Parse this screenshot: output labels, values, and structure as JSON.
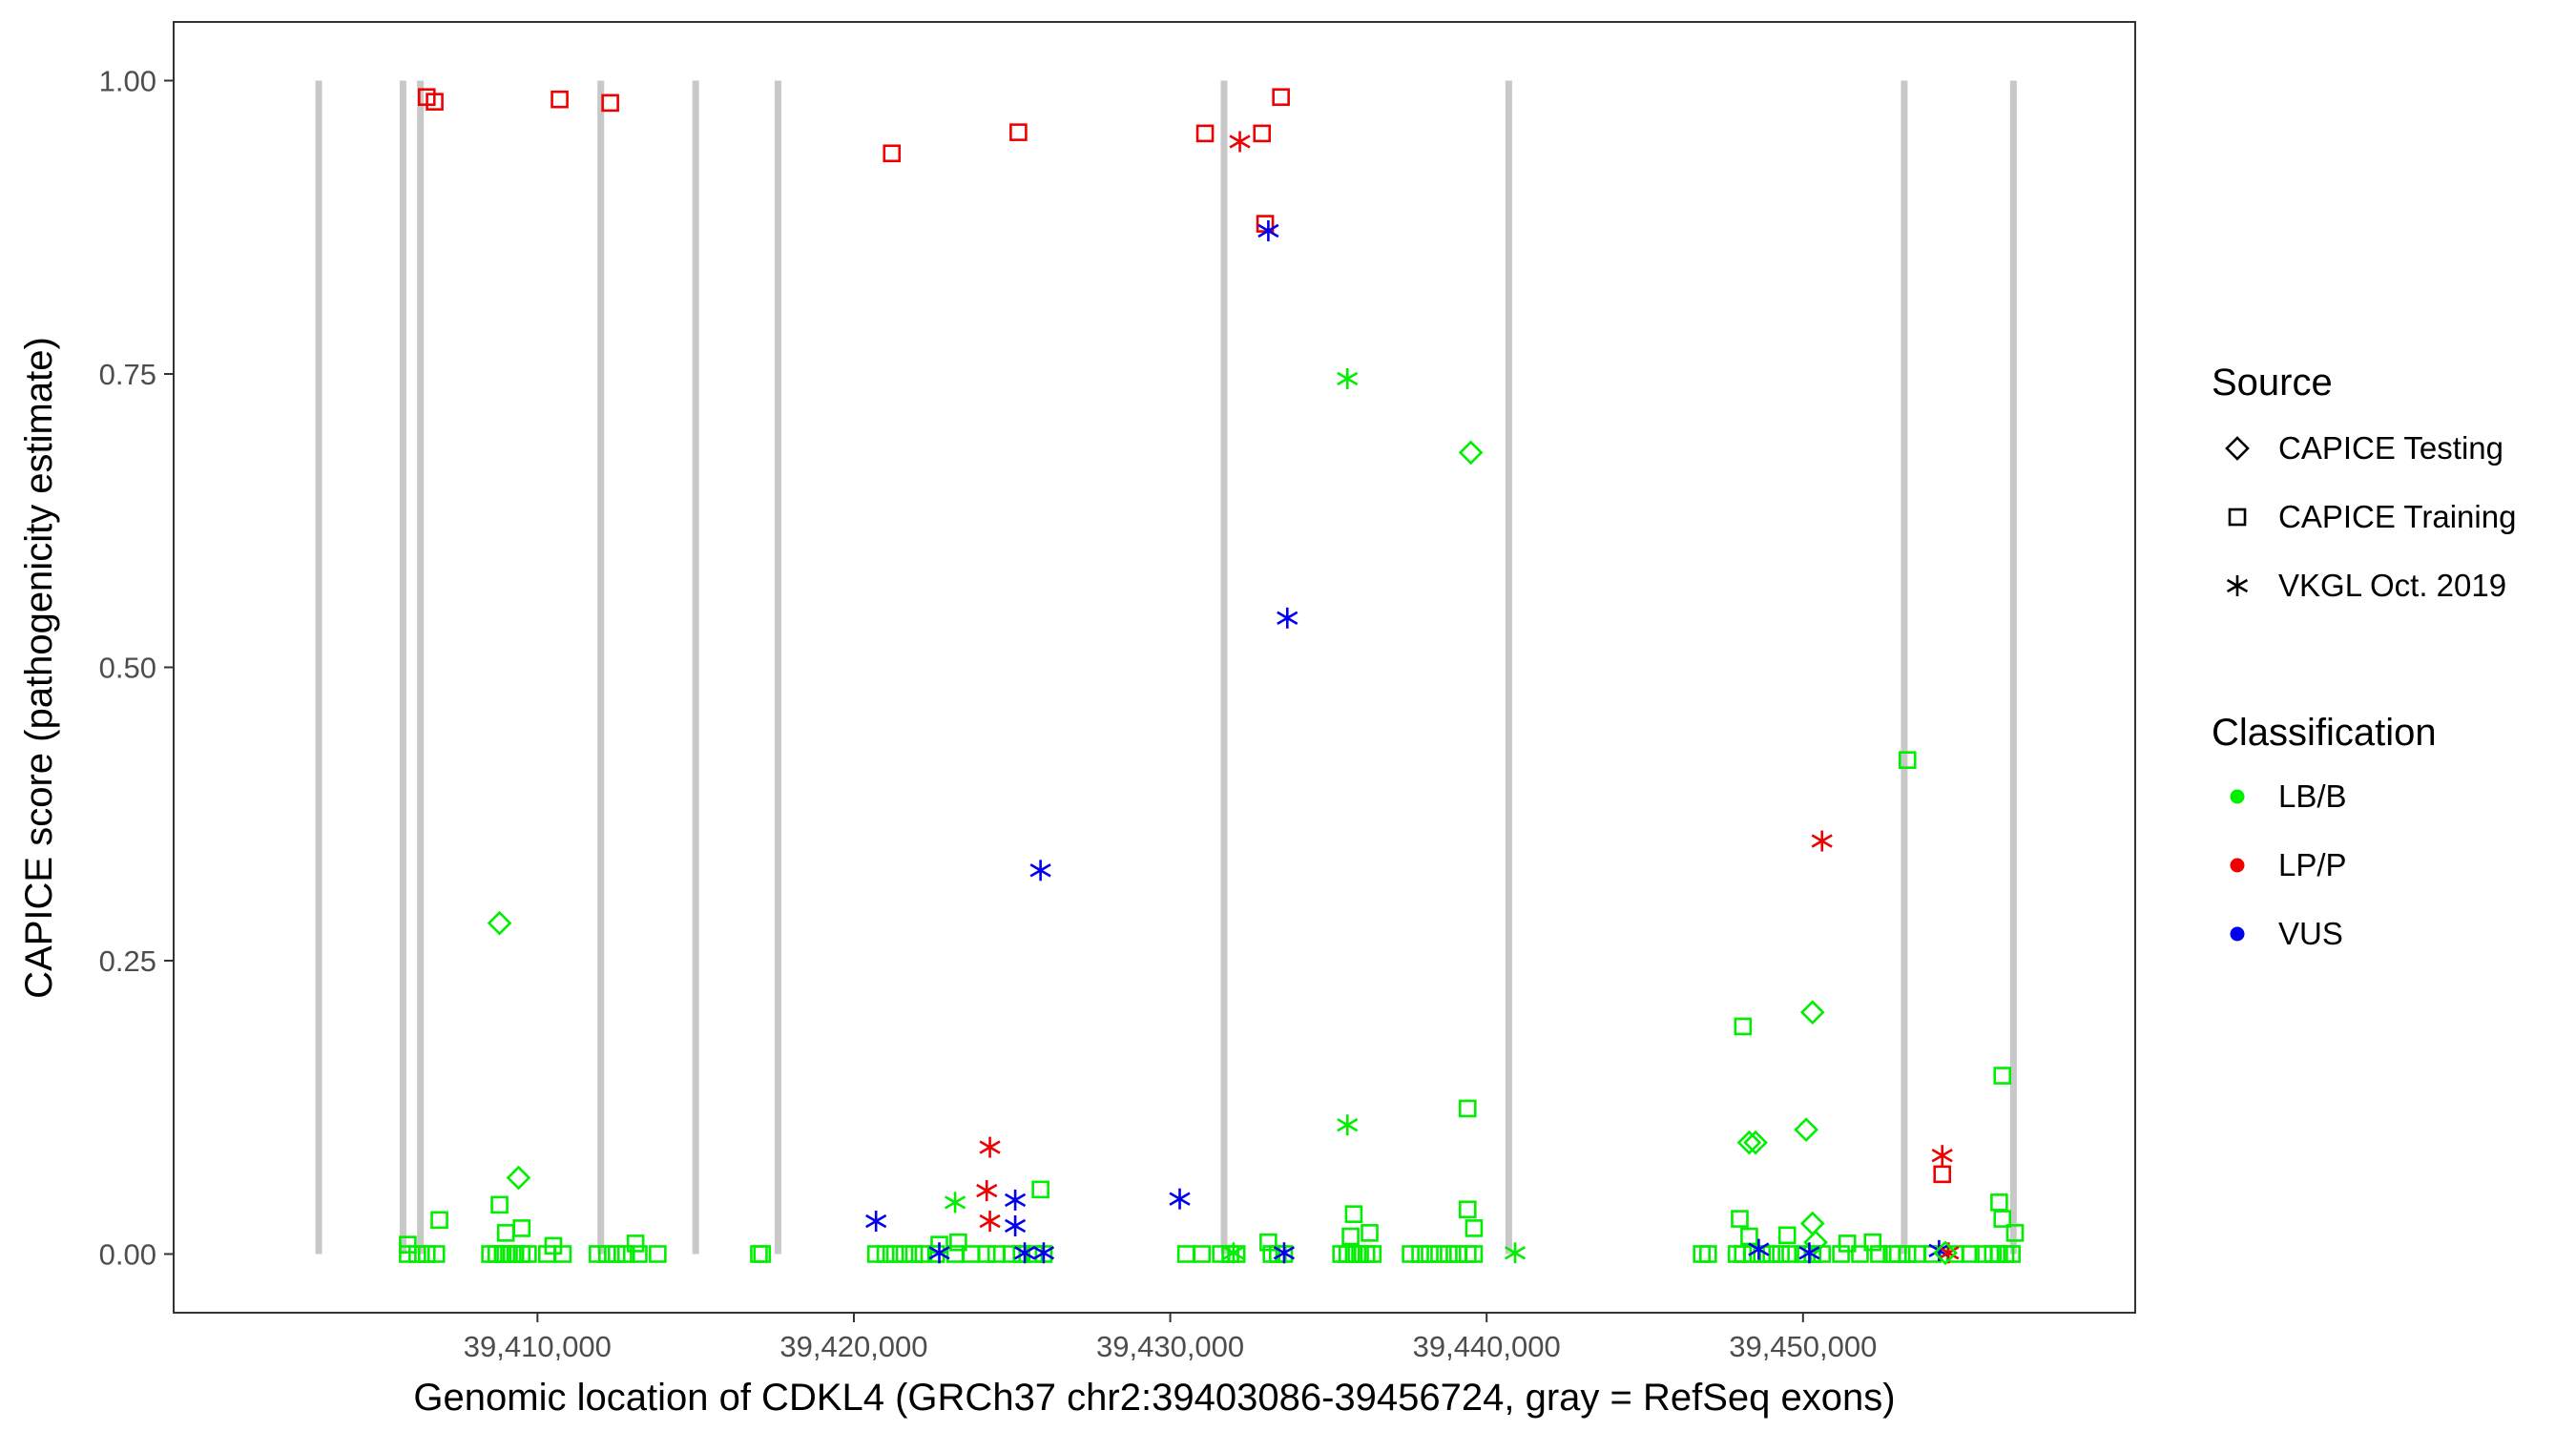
{
  "chart_data": {
    "type": "scatter",
    "title": "",
    "xlabel": "Genomic location of CDKL4 (GRCh37 chr2:39403086-39456724, gray = RefSeq exons)",
    "ylabel": "CAPICE score (pathogenicity estimate)",
    "xlim": [
      39398500,
      39460500
    ],
    "ylim": [
      -0.05,
      1.05
    ],
    "xticks": [
      39410000,
      39420000,
      39430000,
      39440000,
      39450000
    ],
    "xtick_labels": [
      "39,410,000",
      "39,420,000",
      "39,430,000",
      "39,440,000",
      "39,450,000"
    ],
    "yticks": [
      0,
      0.25,
      0.5,
      0.75,
      1.0
    ],
    "ytick_labels": [
      "0.00",
      "0.25",
      "0.50",
      "0.75",
      "1.00"
    ],
    "grid": false,
    "legend_position": "right",
    "exons": [
      39403086,
      39405750,
      39406300,
      39412000,
      39415000,
      39417600,
      39431700,
      39440700,
      39453200,
      39456650
    ],
    "legend": {
      "source_title": "Source",
      "source_items": [
        {
          "label": "CAPICE Testing",
          "shape": "diamond"
        },
        {
          "label": "CAPICE Training",
          "shape": "square"
        },
        {
          "label": "VKGL Oct. 2019",
          "shape": "asterisk"
        }
      ],
      "class_title": "Classification",
      "class_items": [
        {
          "label": "LB/B",
          "color": "#00ee00"
        },
        {
          "label": "LP/P",
          "color": "#ee0000"
        },
        {
          "label": "VUS",
          "color": "#0000ee"
        }
      ]
    },
    "colors": {
      "LB/B": "#00ee00",
      "LP/P": "#ee0000",
      "VUS": "#0000ee",
      "exon": "#c8c8c8"
    },
    "points": [
      {
        "x": 39406500,
        "y": 0.986,
        "s": "square",
        "c": "LP/P"
      },
      {
        "x": 39406750,
        "y": 0.982,
        "s": "square",
        "c": "LP/P"
      },
      {
        "x": 39410700,
        "y": 0.984,
        "s": "square",
        "c": "LP/P"
      },
      {
        "x": 39412300,
        "y": 0.981,
        "s": "square",
        "c": "LP/P"
      },
      {
        "x": 39421200,
        "y": 0.938,
        "s": "square",
        "c": "LP/P"
      },
      {
        "x": 39425200,
        "y": 0.956,
        "s": "square",
        "c": "LP/P"
      },
      {
        "x": 39431100,
        "y": 0.955,
        "s": "square",
        "c": "LP/P"
      },
      {
        "x": 39432900,
        "y": 0.955,
        "s": "square",
        "c": "LP/P"
      },
      {
        "x": 39433500,
        "y": 0.986,
        "s": "square",
        "c": "LP/P"
      },
      {
        "x": 39433000,
        "y": 0.878,
        "s": "square",
        "c": "LP/P"
      },
      {
        "x": 39432200,
        "y": 0.948,
        "s": "asterisk",
        "c": "LP/P"
      },
      {
        "x": 39433100,
        "y": 0.872,
        "s": "asterisk",
        "c": "VUS"
      },
      {
        "x": 39435600,
        "y": 0.746,
        "s": "asterisk",
        "c": "LB/B"
      },
      {
        "x": 39439500,
        "y": 0.683,
        "s": "diamond",
        "c": "LB/B"
      },
      {
        "x": 39433700,
        "y": 0.542,
        "s": "asterisk",
        "c": "VUS"
      },
      {
        "x": 39453300,
        "y": 0.421,
        "s": "square",
        "c": "LB/B"
      },
      {
        "x": 39450600,
        "y": 0.352,
        "s": "asterisk",
        "c": "LP/P"
      },
      {
        "x": 39425900,
        "y": 0.327,
        "s": "asterisk",
        "c": "VUS"
      },
      {
        "x": 39408800,
        "y": 0.282,
        "s": "diamond",
        "c": "LB/B"
      },
      {
        "x": 39450300,
        "y": 0.206,
        "s": "diamond",
        "c": "LB/B"
      },
      {
        "x": 39448100,
        "y": 0.194,
        "s": "square",
        "c": "LB/B"
      },
      {
        "x": 39456300,
        "y": 0.152,
        "s": "square",
        "c": "LB/B"
      },
      {
        "x": 39439400,
        "y": 0.124,
        "s": "square",
        "c": "LB/B"
      },
      {
        "x": 39435600,
        "y": 0.11,
        "s": "asterisk",
        "c": "LB/B"
      },
      {
        "x": 39450100,
        "y": 0.106,
        "s": "diamond",
        "c": "LB/B"
      },
      {
        "x": 39448300,
        "y": 0.095,
        "s": "diamond",
        "c": "LB/B"
      },
      {
        "x": 39448500,
        "y": 0.095,
        "s": "diamond",
        "c": "LB/B"
      },
      {
        "x": 39424300,
        "y": 0.091,
        "s": "asterisk",
        "c": "LP/P"
      },
      {
        "x": 39454400,
        "y": 0.084,
        "s": "asterisk",
        "c": "LP/P"
      },
      {
        "x": 39454400,
        "y": 0.068,
        "s": "square",
        "c": "LP/P"
      },
      {
        "x": 39409400,
        "y": 0.065,
        "s": "diamond",
        "c": "LB/B"
      },
      {
        "x": 39425900,
        "y": 0.055,
        "s": "square",
        "c": "LB/B"
      },
      {
        "x": 39424200,
        "y": 0.054,
        "s": "asterisk",
        "c": "LP/P"
      },
      {
        "x": 39430300,
        "y": 0.047,
        "s": "asterisk",
        "c": "VUS"
      },
      {
        "x": 39425100,
        "y": 0.046,
        "s": "asterisk",
        "c": "VUS"
      },
      {
        "x": 39423200,
        "y": 0.044,
        "s": "asterisk",
        "c": "LB/B"
      },
      {
        "x": 39456200,
        "y": 0.044,
        "s": "square",
        "c": "LB/B"
      },
      {
        "x": 39408800,
        "y": 0.042,
        "s": "square",
        "c": "LB/B"
      },
      {
        "x": 39439400,
        "y": 0.038,
        "s": "square",
        "c": "LB/B"
      },
      {
        "x": 39435800,
        "y": 0.034,
        "s": "square",
        "c": "LB/B"
      },
      {
        "x": 39406900,
        "y": 0.029,
        "s": "square",
        "c": "LB/B"
      },
      {
        "x": 39420700,
        "y": 0.028,
        "s": "asterisk",
        "c": "VUS"
      },
      {
        "x": 39448000,
        "y": 0.03,
        "s": "square",
        "c": "LB/B"
      },
      {
        "x": 39424300,
        "y": 0.028,
        "s": "asterisk",
        "c": "LP/P"
      },
      {
        "x": 39450300,
        "y": 0.026,
        "s": "diamond",
        "c": "LB/B"
      },
      {
        "x": 39456300,
        "y": 0.03,
        "s": "square",
        "c": "LB/B"
      },
      {
        "x": 39425100,
        "y": 0.024,
        "s": "asterisk",
        "c": "VUS"
      },
      {
        "x": 39439600,
        "y": 0.022,
        "s": "square",
        "c": "LB/B"
      },
      {
        "x": 39409500,
        "y": 0.022,
        "s": "square",
        "c": "LB/B"
      },
      {
        "x": 39409000,
        "y": 0.018,
        "s": "square",
        "c": "LB/B"
      },
      {
        "x": 39436300,
        "y": 0.018,
        "s": "square",
        "c": "LB/B"
      },
      {
        "x": 39449500,
        "y": 0.016,
        "s": "square",
        "c": "LB/B"
      },
      {
        "x": 39456700,
        "y": 0.018,
        "s": "square",
        "c": "LB/B"
      },
      {
        "x": 39448300,
        "y": 0.015,
        "s": "square",
        "c": "LB/B"
      },
      {
        "x": 39435700,
        "y": 0.015,
        "s": "square",
        "c": "LB/B"
      },
      {
        "x": 39423300,
        "y": 0.01,
        "s": "square",
        "c": "LB/B"
      },
      {
        "x": 39405900,
        "y": 0.008,
        "s": "square",
        "c": "LB/B"
      },
      {
        "x": 39410500,
        "y": 0.007,
        "s": "square",
        "c": "LB/B"
      },
      {
        "x": 39413100,
        "y": 0.009,
        "s": "square",
        "c": "LB/B"
      },
      {
        "x": 39433100,
        "y": 0.01,
        "s": "square",
        "c": "LB/B"
      },
      {
        "x": 39422700,
        "y": 0.008,
        "s": "square",
        "c": "LB/B"
      },
      {
        "x": 39450400,
        "y": 0.01,
        "s": "diamond",
        "c": "LB/B"
      },
      {
        "x": 39451400,
        "y": 0.009,
        "s": "square",
        "c": "LB/B"
      },
      {
        "x": 39452200,
        "y": 0.01,
        "s": "square",
        "c": "LB/B"
      },
      {
        "x": 39454300,
        "y": 0.003,
        "s": "asterisk",
        "c": "VUS"
      },
      {
        "x": 39448600,
        "y": 0.004,
        "s": "asterisk",
        "c": "VUS"
      },
      {
        "x": 39450200,
        "y": 0.001,
        "s": "asterisk",
        "c": "VUS"
      },
      {
        "x": 39422700,
        "y": 0.001,
        "s": "asterisk",
        "c": "VUS"
      },
      {
        "x": 39425400,
        "y": 0.001,
        "s": "asterisk",
        "c": "VUS"
      },
      {
        "x": 39426000,
        "y": 0.001,
        "s": "asterisk",
        "c": "VUS"
      },
      {
        "x": 39433600,
        "y": 0.001,
        "s": "asterisk",
        "c": "VUS"
      },
      {
        "x": 39432000,
        "y": 0.001,
        "s": "asterisk",
        "c": "LB/B"
      },
      {
        "x": 39440900,
        "y": 0.001,
        "s": "asterisk",
        "c": "LB/B"
      },
      {
        "x": 39454600,
        "y": 0.001,
        "s": "asterisk",
        "c": "LP/P"
      },
      {
        "x": 39454500,
        "y": 0.001,
        "s": "diamond",
        "c": "LB/B"
      },
      {
        "x": 39417100,
        "y": 0.0,
        "s": "square",
        "c": "LB/B"
      }
    ],
    "baseline_points": [
      39405900,
      39406200,
      39406500,
      39406800,
      39408500,
      39408700,
      39408900,
      39409100,
      39409300,
      39409500,
      39409700,
      39410300,
      39410800,
      39411900,
      39412200,
      39412500,
      39412800,
      39413200,
      39413800,
      39417000,
      39420700,
      39421000,
      39421300,
      39421600,
      39421900,
      39422200,
      39422600,
      39423200,
      39423700,
      39424200,
      39424500,
      39425000,
      39425300,
      39425700,
      39426000,
      39430500,
      39431000,
      39431600,
      39431900,
      39432100,
      39433200,
      39433400,
      39433600,
      39435400,
      39435600,
      39435800,
      39436000,
      39436200,
      39436400,
      39437600,
      39437900,
      39438200,
      39438500,
      39438800,
      39439100,
      39439400,
      39439600,
      39446800,
      39447000,
      39447900,
      39448100,
      39448400,
      39448700,
      39449000,
      39449300,
      39449600,
      39450000,
      39450300,
      39450600,
      39451200,
      39451800,
      39452400,
      39452800,
      39453000,
      39453300,
      39453600,
      39454100,
      39454800,
      39455300,
      39455700,
      39456000,
      39456200,
      39456400,
      39456600
    ]
  }
}
